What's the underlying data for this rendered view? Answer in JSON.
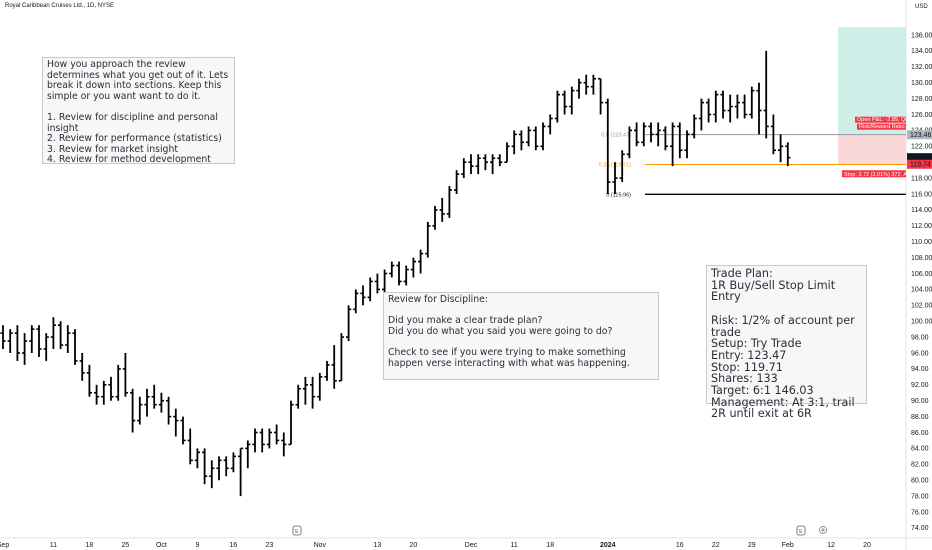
{
  "header": {
    "symbol_title": "Royal Caribbean Cruises Ltd., 1D, NYSE",
    "currency": "USD"
  },
  "notes": {
    "intro": "How you approach the review determines what you get out of it. Lets break it down into sections. Keep this simple or you want want to do it.\n\n1. Review for discipline and personal insight\n2. Review for performance (statistics)\n3. Review for market insight\n4. Review for method development",
    "discipline": "Review for Discipline:\n\nDid you make a clear trade plan?\nDid you do what you said you were going to do?\n\nCheck to see if you were trying to make something happen verse interacting with what was happening.",
    "plan": "Trade Plan:\n1R Buy/Sell Stop Limit Entry\n\nRisk: 1/2% of account per trade\nSetup: Try Trade\nEntry: 123.47\nStop: 119.71\nShares: 133\nTarget: 6:1  146.03\nManagement: At 3:1, trail 2R until exit at 6R"
  },
  "position_tool": {
    "target_label": "Open P&L: -2.89, Qty: 133",
    "rr_label": "Risk/Reward Ratio: 6.03",
    "stop_label": "Stop: 3.72 (3.01%) 372, Amount: 494",
    "entry_price_label": "123.46",
    "stop_price_label": "119.74",
    "last_price_label": "120.57",
    "entry": 123.46,
    "stop": 119.74,
    "last": 120.57,
    "target_top": 137.0
  },
  "fib_levels": [
    {
      "label": "0.5 (123.47)",
      "value": 123.47,
      "color": "#9598a1"
    },
    {
      "label": "0.25 (119.71)",
      "value": 119.71,
      "color": "#ff9800"
    },
    {
      "label": "0 (115.96)",
      "value": 115.96,
      "color": "#000000"
    }
  ],
  "chart_data": {
    "type": "ohlc",
    "title": "Royal Caribbean Cruises Ltd., 1D, NYSE",
    "ylim": [
      73,
      137
    ],
    "y_ticks": [
      74,
      76,
      78,
      80,
      82,
      84,
      86,
      88,
      90,
      92,
      94,
      96,
      98,
      100,
      102,
      104,
      106,
      108,
      110,
      112,
      114,
      116,
      118,
      120,
      122,
      124,
      126,
      128,
      130,
      132,
      134,
      136
    ],
    "y_tick_labels": [
      "74.00",
      "76.00",
      "78.00",
      "80.00",
      "82.00",
      "84.00",
      "86.00",
      "88.00",
      "90.00",
      "92.00",
      "94.00",
      "96.00",
      "98.00",
      "100.00",
      "102.00",
      "104.00",
      "106.00",
      "108.00",
      "110.00",
      "112.00",
      "114.00",
      "116.00",
      "118.00",
      "120.00",
      "122.00",
      "124.00",
      "126.00",
      "128.00",
      "130.00",
      "132.00",
      "134.00",
      "136.00"
    ],
    "x_ticks": [
      {
        "label": "Sep",
        "bar": 0,
        "bold": false
      },
      {
        "label": "11",
        "bar": 7,
        "bold": false
      },
      {
        "label": "18",
        "bar": 12,
        "bold": false
      },
      {
        "label": "25",
        "bar": 17,
        "bold": false
      },
      {
        "label": "Oct",
        "bar": 22,
        "bold": false
      },
      {
        "label": "9",
        "bar": 27,
        "bold": false
      },
      {
        "label": "16",
        "bar": 32,
        "bold": false
      },
      {
        "label": "23",
        "bar": 37,
        "bold": false
      },
      {
        "label": "Nov",
        "bar": 44,
        "bold": false
      },
      {
        "label": "13",
        "bar": 52,
        "bold": false
      },
      {
        "label": "20",
        "bar": 57,
        "bold": false
      },
      {
        "label": "Dec",
        "bar": 65,
        "bold": false
      },
      {
        "label": "11",
        "bar": 71,
        "bold": false
      },
      {
        "label": "18",
        "bar": 76,
        "bold": false
      },
      {
        "label": "2024",
        "bar": 84,
        "bold": true
      },
      {
        "label": "16",
        "bar": 94,
        "bold": false
      },
      {
        "label": "22",
        "bar": 99,
        "bold": false
      },
      {
        "label": "29",
        "bar": 104,
        "bold": false
      },
      {
        "label": "Feb",
        "bar": 109,
        "bold": false
      },
      {
        "label": "12",
        "bar": 115,
        "bold": false
      },
      {
        "label": "20",
        "bar": 120,
        "bold": false
      }
    ],
    "bars": [
      [
        98.5,
        99.5,
        96.5,
        97.5
      ],
      [
        97.5,
        99.0,
        96.0,
        98.5
      ],
      [
        98.5,
        99.5,
        95.0,
        96.0
      ],
      [
        96.0,
        98.5,
        94.5,
        97.5
      ],
      [
        97.5,
        99.5,
        96.0,
        99.0
      ],
      [
        99.0,
        99.5,
        95.5,
        96.5
      ],
      [
        96.5,
        98.5,
        95.0,
        98.0
      ],
      [
        98.0,
        100.5,
        96.5,
        99.5
      ],
      [
        99.5,
        100.0,
        96.5,
        97.0
      ],
      [
        97.0,
        99.5,
        96.0,
        98.5
      ],
      [
        98.5,
        99.0,
        94.5,
        95.0
      ],
      [
        95.0,
        96.0,
        92.5,
        93.5
      ],
      [
        93.5,
        94.5,
        90.5,
        91.0
      ],
      [
        91.0,
        92.0,
        89.5,
        90.5
      ],
      [
        90.5,
        92.5,
        89.5,
        92.0
      ],
      [
        92.0,
        93.0,
        90.0,
        90.5
      ],
      [
        90.5,
        94.5,
        90.0,
        94.0
      ],
      [
        94.0,
        96.0,
        90.5,
        91.0
      ],
      [
        91.0,
        91.5,
        86.0,
        87.5
      ],
      [
        87.5,
        90.5,
        87.0,
        89.5
      ],
      [
        89.5,
        91.5,
        88.0,
        90.5
      ],
      [
        90.5,
        92.0,
        89.0,
        89.5
      ],
      [
        89.5,
        91.0,
        88.5,
        90.0
      ],
      [
        90.0,
        90.5,
        87.0,
        88.0
      ],
      [
        88.0,
        89.0,
        85.5,
        87.5
      ],
      [
        87.5,
        88.0,
        84.5,
        85.0
      ],
      [
        85.0,
        86.5,
        82.0,
        82.5
      ],
      [
        82.5,
        84.0,
        81.5,
        83.5
      ],
      [
        83.5,
        84.0,
        79.5,
        80.5
      ],
      [
        80.5,
        82.5,
        79.0,
        81.5
      ],
      [
        81.5,
        83.0,
        80.0,
        82.5
      ],
      [
        82.5,
        83.0,
        80.5,
        81.5
      ],
      [
        81.5,
        83.5,
        81.0,
        83.0
      ],
      [
        83.0,
        84.0,
        78.0,
        84.0
      ],
      [
        84.0,
        85.0,
        81.5,
        84.5
      ],
      [
        84.5,
        86.5,
        83.5,
        86.0
      ],
      [
        86.0,
        86.5,
        83.5,
        84.5
      ],
      [
        84.5,
        86.5,
        84.0,
        86.0
      ],
      [
        86.0,
        87.0,
        84.5,
        85.0
      ],
      [
        85.0,
        86.0,
        83.0,
        84.5
      ],
      [
        84.5,
        90.0,
        84.5,
        89.5
      ],
      [
        89.5,
        92.0,
        89.0,
        91.5
      ],
      [
        91.5,
        93.0,
        89.5,
        92.0
      ],
      [
        92.0,
        93.0,
        89.0,
        90.5
      ],
      [
        90.5,
        93.5,
        90.0,
        93.0
      ],
      [
        93.0,
        95.0,
        92.5,
        94.5
      ],
      [
        94.5,
        97.0,
        91.5,
        92.5
      ],
      [
        92.5,
        98.5,
        92.5,
        98.0
      ],
      [
        98.0,
        102.0,
        97.5,
        101.5
      ],
      [
        101.5,
        104.0,
        101.0,
        103.5
      ],
      [
        103.5,
        104.5,
        102.0,
        103.0
      ],
      [
        103.0,
        105.5,
        102.5,
        105.0
      ],
      [
        105.0,
        106.0,
        103.5,
        104.0
      ],
      [
        104.0,
        106.5,
        103.5,
        106.0
      ],
      [
        106.0,
        107.5,
        105.5,
        107.0
      ],
      [
        107.0,
        107.5,
        104.5,
        105.0
      ],
      [
        105.0,
        107.0,
        104.5,
        106.5
      ],
      [
        106.5,
        108.0,
        105.5,
        107.5
      ],
      [
        107.5,
        109.0,
        106.0,
        108.5
      ],
      [
        108.5,
        112.5,
        108.0,
        112.0
      ],
      [
        112.0,
        114.5,
        111.5,
        114.0
      ],
      [
        114.0,
        115.5,
        112.5,
        113.5
      ],
      [
        113.5,
        117.0,
        113.0,
        116.5
      ],
      [
        116.5,
        119.0,
        116.0,
        118.5
      ],
      [
        118.5,
        120.5,
        118.0,
        120.0
      ],
      [
        120.0,
        121.0,
        118.5,
        119.5
      ],
      [
        119.5,
        121.0,
        118.5,
        120.5
      ],
      [
        120.5,
        121.0,
        119.0,
        120.0
      ],
      [
        120.0,
        121.0,
        118.5,
        120.5
      ],
      [
        120.5,
        121.0,
        119.5,
        120.0
      ],
      [
        120.0,
        122.5,
        120.0,
        122.0
      ],
      [
        122.0,
        124.0,
        121.0,
        123.5
      ],
      [
        123.5,
        124.0,
        121.5,
        122.5
      ],
      [
        122.5,
        124.5,
        122.0,
        124.0
      ],
      [
        124.0,
        124.5,
        121.5,
        122.0
      ],
      [
        122.0,
        125.0,
        121.5,
        124.5
      ],
      [
        124.5,
        126.0,
        123.5,
        125.5
      ],
      [
        125.5,
        129.0,
        125.0,
        128.5
      ],
      [
        128.5,
        129.0,
        126.0,
        127.0
      ],
      [
        127.0,
        129.5,
        126.0,
        129.0
      ],
      [
        129.0,
        130.5,
        128.0,
        130.0
      ],
      [
        130.0,
        131.0,
        128.5,
        129.5
      ],
      [
        129.5,
        131.0,
        128.5,
        130.5
      ],
      [
        130.5,
        130.5,
        126.0,
        127.5
      ],
      [
        127.5,
        128.0,
        116.0,
        117.5
      ],
      [
        117.5,
        120.0,
        116.0,
        118.0
      ],
      [
        118.0,
        121.5,
        117.5,
        121.0
      ],
      [
        121.0,
        124.5,
        120.5,
        124.0
      ],
      [
        124.0,
        125.0,
        122.0,
        122.5
      ],
      [
        122.5,
        125.0,
        122.0,
        124.5
      ],
      [
        124.5,
        125.0,
        122.5,
        123.5
      ],
      [
        123.5,
        125.0,
        122.0,
        124.0
      ],
      [
        124.0,
        124.5,
        121.5,
        122.0
      ],
      [
        122.0,
        125.0,
        119.5,
        124.5
      ],
      [
        124.5,
        125.0,
        120.5,
        121.5
      ],
      [
        121.5,
        124.0,
        120.5,
        123.5
      ],
      [
        123.5,
        126.0,
        123.0,
        125.5
      ],
      [
        125.5,
        128.0,
        124.0,
        127.5
      ],
      [
        127.5,
        128.0,
        125.0,
        126.0
      ],
      [
        126.0,
        129.0,
        125.0,
        128.5
      ],
      [
        128.5,
        129.0,
        125.5,
        126.5
      ],
      [
        126.5,
        128.5,
        125.0,
        127.0
      ],
      [
        127.0,
        128.5,
        125.5,
        127.5
      ],
      [
        127.5,
        128.5,
        125.5,
        126.0
      ],
      [
        126.0,
        129.5,
        125.5,
        129.0
      ],
      [
        129.0,
        130.0,
        123.5,
        126.5
      ],
      [
        126.5,
        134.0,
        123.0,
        124.5
      ],
      [
        124.5,
        126.0,
        121.0,
        121.5
      ],
      [
        121.5,
        123.5,
        120.0,
        122.0
      ],
      [
        122.0,
        122.5,
        119.5,
        120.57
      ]
    ]
  }
}
